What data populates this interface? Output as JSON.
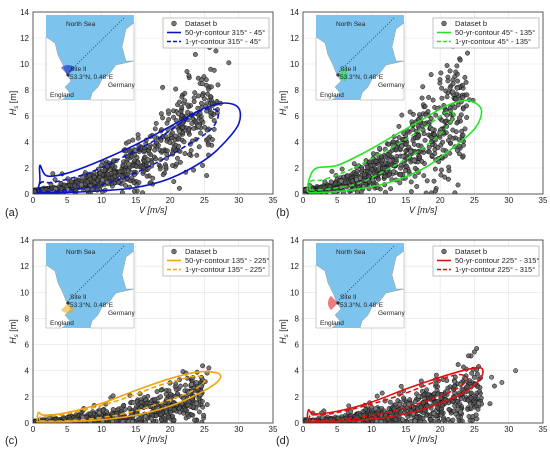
{
  "colors": {
    "sea": "#7cc4ee",
    "land": "#ffffff",
    "point": "#111111",
    "grid": "#e3e3e3"
  },
  "chart_data": [
    {
      "panel_label": "(a)",
      "type": "scatter",
      "xlabel": "V [m/s]",
      "ylabel_main": "H",
      "ylabel_sub": "s",
      "ylabel_unit": "[m]",
      "xlim": [
        0,
        35
      ],
      "ylim": [
        0,
        14
      ],
      "xticks": [
        "0",
        "5",
        "10",
        "15",
        "20",
        "25",
        "30",
        "35"
      ],
      "yticks": [
        "0",
        "2",
        "4",
        "6",
        "8",
        "10",
        "12",
        "14"
      ],
      "color": "#0a14c8",
      "series": [
        {
          "name": "Dataset b",
          "kind": "scatter"
        },
        {
          "name": "50-yr-contour 315° - 45°",
          "kind": "contour50"
        },
        {
          "name": "1-yr-contour 315° - 45°",
          "kind": "contour1"
        }
      ],
      "map": {
        "sea_label": "North Sea",
        "site_label": "Site II",
        "coord_label": "53.3°N, 0.48°E",
        "country1": "England",
        "country2": "Germany",
        "sector": [
          315,
          45
        ]
      },
      "scatter": {
        "xmax": 27,
        "a": 0.25,
        "b": 0.0095,
        "c": 0.005,
        "spread": 0.75
      },
      "contour50": [
        [
          0.6,
          0.2
        ],
        [
          1,
          1
        ],
        [
          1,
          2.2
        ],
        [
          2,
          1.4
        ],
        [
          5,
          1.6
        ],
        [
          10,
          2.6
        ],
        [
          15,
          3.8
        ],
        [
          20,
          5.2
        ],
        [
          25,
          6.6
        ],
        [
          28,
          7
        ],
        [
          30,
          6.6
        ],
        [
          30,
          5.4
        ],
        [
          28,
          4
        ],
        [
          25,
          2.6
        ],
        [
          20,
          1.2
        ],
        [
          15,
          0.5
        ],
        [
          10,
          0.25
        ],
        [
          5,
          0.12
        ],
        [
          1,
          0.08
        ],
        [
          0.6,
          0.2
        ]
      ],
      "contour1": [
        [
          1,
          0.15
        ],
        [
          1.2,
          0.9
        ],
        [
          3,
          0.9
        ],
        [
          8,
          1.6
        ],
        [
          13,
          2.8
        ],
        [
          18,
          4.2
        ],
        [
          22,
          5.6
        ],
        [
          25,
          6.5
        ],
        [
          27,
          6.3
        ],
        [
          26,
          5
        ],
        [
          22,
          3.6
        ],
        [
          18,
          2.4
        ],
        [
          13,
          1.2
        ],
        [
          8,
          0.5
        ],
        [
          4,
          0.25
        ],
        [
          1,
          0.15
        ]
      ]
    },
    {
      "panel_label": "(b)",
      "type": "scatter",
      "xlabel": "V [m/s]",
      "ylabel_main": "H",
      "ylabel_sub": "s",
      "ylabel_unit": "[m]",
      "xlim": [
        0,
        35
      ],
      "ylim": [
        0,
        14
      ],
      "xticks": [
        "0",
        "5",
        "10",
        "15",
        "20",
        "25",
        "30",
        "35"
      ],
      "yticks": [
        "0",
        "2",
        "4",
        "6",
        "8",
        "10",
        "12",
        "14"
      ],
      "color": "#26e326",
      "series": [
        {
          "name": "Dataset b",
          "kind": "scatter"
        },
        {
          "name": "50-yr-contour 45° - 135°",
          "kind": "contour50"
        },
        {
          "name": "1-yr-contour 45° - 135°",
          "kind": "contour1"
        }
      ],
      "map": {
        "sea_label": "North Sea",
        "site_label": "Site II",
        "coord_label": "53.3°N, 0.48°E",
        "country1": "England",
        "country2": "Germany",
        "sector": [
          45,
          135
        ]
      },
      "scatter": {
        "xmax": 24,
        "a": 0.3,
        "b": 0.012,
        "c": 0.008,
        "spread": 0.9
      },
      "contour50": [
        [
          0.6,
          0.3
        ],
        [
          1,
          1.3
        ],
        [
          2,
          2
        ],
        [
          5,
          2.2
        ],
        [
          9,
          3.2
        ],
        [
          13,
          4.4
        ],
        [
          17,
          5.6
        ],
        [
          21,
          6.8
        ],
        [
          24,
          7.2
        ],
        [
          26,
          6.5
        ],
        [
          25,
          5
        ],
        [
          21,
          3.2
        ],
        [
          17,
          1.8
        ],
        [
          12,
          0.8
        ],
        [
          7,
          0.3
        ],
        [
          3,
          0.12
        ],
        [
          1,
          0.1
        ],
        [
          0.6,
          0.3
        ]
      ],
      "contour1": [
        [
          1,
          0.3
        ],
        [
          1.2,
          1
        ],
        [
          3,
          1.1
        ],
        [
          7,
          1.9
        ],
        [
          11,
          3
        ],
        [
          15,
          4.2
        ],
        [
          19,
          5.6
        ],
        [
          21,
          6.3
        ],
        [
          22,
          6
        ],
        [
          20,
          4.6
        ],
        [
          16,
          3
        ],
        [
          12,
          1.8
        ],
        [
          8,
          0.8
        ],
        [
          4,
          0.4
        ],
        [
          1,
          0.3
        ]
      ]
    },
    {
      "panel_label": "(c)",
      "type": "scatter",
      "xlabel": "V [m/s]",
      "ylabel_main": "H",
      "ylabel_sub": "s",
      "ylabel_unit": "[m]",
      "xlim": [
        0,
        35
      ],
      "ylim": [
        0,
        14
      ],
      "xticks": [
        "0",
        "5",
        "10",
        "15",
        "20",
        "25",
        "30",
        "35"
      ],
      "yticks": [
        "0",
        "2",
        "4",
        "6",
        "8",
        "10",
        "12",
        "14"
      ],
      "color": "#f2a40f",
      "series": [
        {
          "name": "Dataset b",
          "kind": "scatter"
        },
        {
          "name": "50-yr-contour 135° - 225°",
          "kind": "contour50"
        },
        {
          "name": "1-yr-contour 135° - 225°",
          "kind": "contour1"
        }
      ],
      "map": {
        "sea_label": "North Sea",
        "site_label": "Site II",
        "coord_label": "53.3°N, 0.48°E",
        "country1": "England",
        "country2": "Germany",
        "sector": [
          135,
          225
        ]
      },
      "scatter": {
        "xmax": 25,
        "a": 0.08,
        "b": 0.003,
        "c": 0.0028,
        "spread": 0.55
      },
      "contour50": [
        [
          0.6,
          0.2
        ],
        [
          0.8,
          0.8
        ],
        [
          1.6,
          0.6
        ],
        [
          5,
          0.8
        ],
        [
          10,
          1.5
        ],
        [
          15,
          2.5
        ],
        [
          20,
          3.4
        ],
        [
          24,
          3.9
        ],
        [
          27,
          3.8
        ],
        [
          27,
          3.2
        ],
        [
          24,
          2.2
        ],
        [
          20,
          1.3
        ],
        [
          15,
          0.6
        ],
        [
          10,
          0.25
        ],
        [
          5,
          0.1
        ],
        [
          1,
          0.08
        ],
        [
          0.6,
          0.2
        ]
      ],
      "contour1": [
        [
          1,
          0.15
        ],
        [
          1.2,
          0.5
        ],
        [
          4,
          0.6
        ],
        [
          9,
          1.2
        ],
        [
          14,
          2
        ],
        [
          18,
          2.8
        ],
        [
          22,
          3.4
        ],
        [
          24,
          3.6
        ],
        [
          25,
          3.2
        ],
        [
          23,
          2.4
        ],
        [
          19,
          1.6
        ],
        [
          14,
          0.8
        ],
        [
          9,
          0.35
        ],
        [
          4,
          0.15
        ],
        [
          1,
          0.15
        ]
      ]
    },
    {
      "panel_label": "(d)",
      "type": "scatter",
      "xlabel": "V [m/s]",
      "ylabel_main": "H",
      "ylabel_sub": "s",
      "ylabel_unit": "[m]",
      "xlim": [
        0,
        35
      ],
      "ylim": [
        0,
        14
      ],
      "xticks": [
        "0",
        "5",
        "10",
        "15",
        "20",
        "25",
        "30",
        "35"
      ],
      "yticks": [
        "0",
        "2",
        "4",
        "6",
        "8",
        "10",
        "12",
        "14"
      ],
      "color": "#e01010",
      "series": [
        {
          "name": "Dataset b",
          "kind": "scatter"
        },
        {
          "name": "50-yr-contour 225° - 315°",
          "kind": "contour50"
        },
        {
          "name": "1-yr-contour 225° - 315°",
          "kind": "contour1"
        }
      ],
      "map": {
        "sea_label": "North Sea",
        "site_label": "Site II",
        "coord_label": "53.3°N, 0.48°E",
        "country1": "England",
        "country2": "Germany",
        "sector": [
          225,
          315
        ]
      },
      "scatter": {
        "xmax": 26,
        "a": 0.08,
        "b": 0.0035,
        "c": 0.003,
        "spread": 0.6
      },
      "outliers": [
        [
          31,
          4
        ],
        [
          29,
          3.1
        ],
        [
          27.5,
          3.5
        ]
      ],
      "contour50": [
        [
          0.6,
          0.2
        ],
        [
          0.8,
          1
        ],
        [
          1.6,
          0.7
        ],
        [
          5,
          0.9
        ],
        [
          10,
          1.6
        ],
        [
          15,
          2.6
        ],
        [
          20,
          3.5
        ],
        [
          24,
          4.1
        ],
        [
          26,
          4.2
        ],
        [
          26,
          3.5
        ],
        [
          24,
          2.5
        ],
        [
          20,
          1.5
        ],
        [
          15,
          0.7
        ],
        [
          10,
          0.3
        ],
        [
          5,
          0.1
        ],
        [
          1,
          0.08
        ],
        [
          0.6,
          0.2
        ]
      ],
      "contour1": [
        [
          1,
          0.2
        ],
        [
          1.2,
          0.6
        ],
        [
          4,
          0.7
        ],
        [
          9,
          1.3
        ],
        [
          14,
          2.1
        ],
        [
          18,
          2.9
        ],
        [
          21,
          3.5
        ],
        [
          23,
          3.7
        ],
        [
          24,
          3.3
        ],
        [
          22,
          2.5
        ],
        [
          18,
          1.7
        ],
        [
          13,
          0.9
        ],
        [
          8,
          0.4
        ],
        [
          4,
          0.2
        ],
        [
          1,
          0.2
        ]
      ]
    }
  ]
}
